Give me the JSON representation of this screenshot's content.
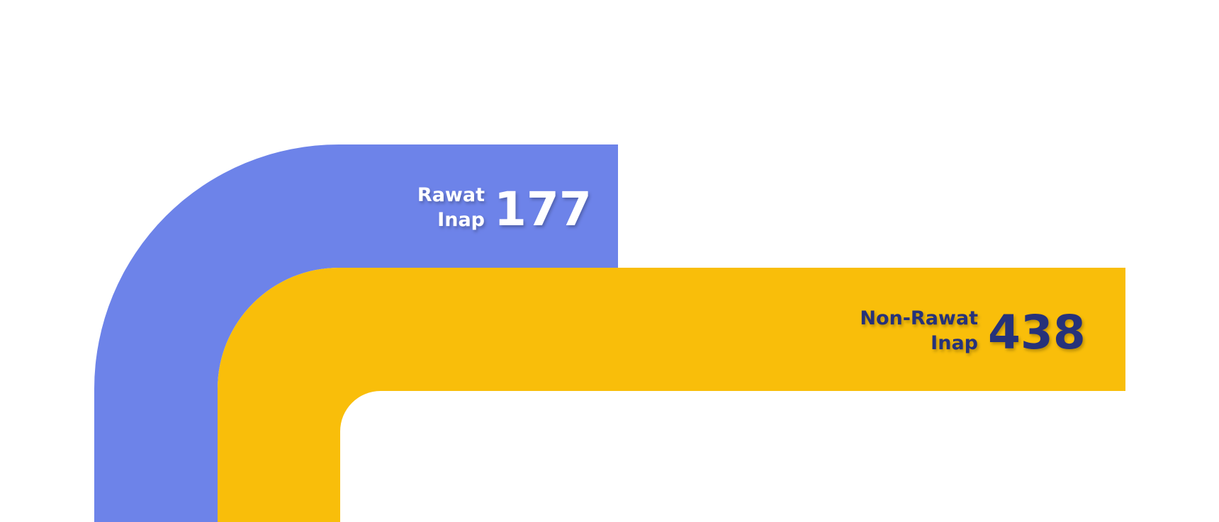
{
  "chart_data": {
    "type": "bar",
    "categories": [
      "Rawat Inap",
      "Non-Rawat Inap"
    ],
    "values": [
      177,
      438
    ],
    "series": [
      {
        "label_lines": [
          "Rawat",
          "Inap"
        ],
        "value": 177,
        "color": "#6D83E9",
        "text_color": "#FFFFFF"
      },
      {
        "label_lines": [
          "Non-Rawat",
          "Inap"
        ],
        "value": 438,
        "color": "#F9BE0A",
        "text_color": "#26307A"
      }
    ]
  }
}
